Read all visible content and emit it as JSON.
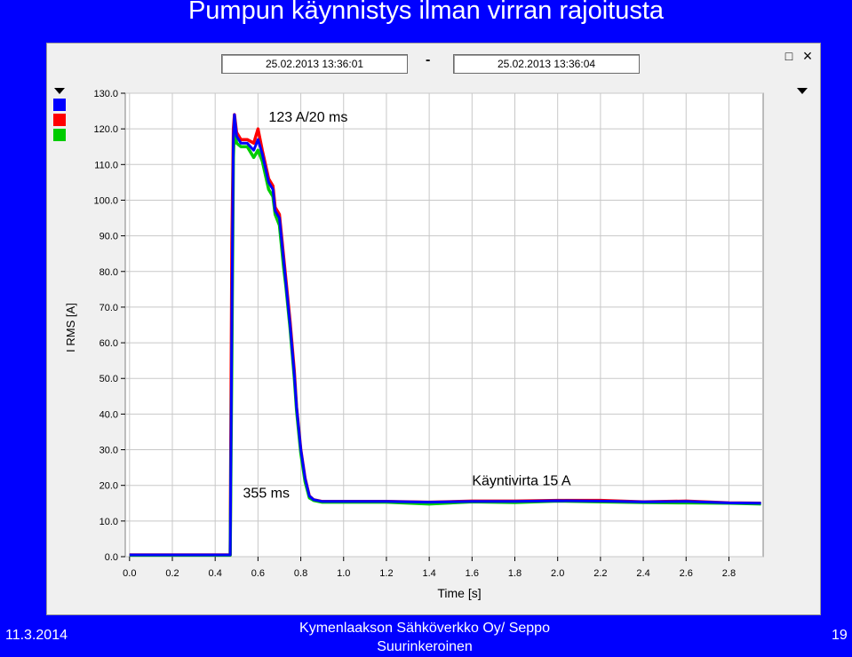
{
  "slide": {
    "title": "Pumpun käynnistys ilman virran rajoitusta",
    "footer_date": "11.3.2014",
    "footer_center": "Kymenlaakson Sähköverkko Oy/ Seppo Suurinkeroinen",
    "page_number": "19"
  },
  "viewer": {
    "time_start": "25.02.2013    13:36:01",
    "time_separator": "-",
    "time_end": "25.02.2013    13:36:04",
    "restore_icon": "restore-icon",
    "close_icon": "close-icon",
    "legend_colors": [
      "#0000ff",
      "#ff0000",
      "#00cc00"
    ]
  },
  "chart_data": {
    "type": "line",
    "title": "",
    "xlabel": "Time [s]",
    "ylabel": "I RMS [A]",
    "xlim": [
      -0.02,
      2.96
    ],
    "ylim": [
      0,
      130
    ],
    "x_ticks": [
      "0.0",
      "0.2",
      "0.4",
      "0.6",
      "0.8",
      "1.0",
      "1.2",
      "1.4",
      "1.6",
      "1.8",
      "2.0",
      "2.2",
      "2.4",
      "2.6",
      "2.8"
    ],
    "y_ticks": [
      "0.0",
      "10.0",
      "20.0",
      "30.0",
      "40.0",
      "50.0",
      "60.0",
      "70.0",
      "80.0",
      "90.0",
      "100.0",
      "110.0",
      "120.0",
      "130.0"
    ],
    "grid": true,
    "annotations": [
      {
        "text": "123 A/20 ms",
        "x": 0.65,
        "y": 122
      },
      {
        "text": "355 ms",
        "x": 0.53,
        "y": 16.5
      },
      {
        "text": "Käyntivirta 15 A",
        "x": 1.6,
        "y": 20
      }
    ],
    "series": [
      {
        "color": "#ff0000",
        "x": [
          0.0,
          0.47,
          0.478,
          0.485,
          0.49,
          0.5,
          0.52,
          0.55,
          0.58,
          0.6,
          0.62,
          0.65,
          0.67,
          0.68,
          0.7,
          0.72,
          0.73,
          0.75,
          0.77,
          0.78,
          0.8,
          0.82,
          0.84,
          0.86,
          0.9,
          1.0,
          1.2,
          1.4,
          1.6,
          1.8,
          2.0,
          2.2,
          2.4,
          2.6,
          2.8,
          2.95
        ],
        "y": [
          0.5,
          0.5,
          88,
          120,
          124,
          119,
          117,
          117,
          116,
          120,
          114,
          106,
          104,
          98,
          96,
          84,
          78,
          66,
          52,
          42,
          30,
          22,
          17,
          16,
          15.5,
          15.5,
          15.5,
          15.3,
          15.6,
          15.6,
          15.8,
          15.8,
          15.4,
          15.6,
          15.1,
          15
        ]
      },
      {
        "color": "#00cc00",
        "x": [
          0.0,
          0.47,
          0.478,
          0.485,
          0.49,
          0.5,
          0.52,
          0.55,
          0.58,
          0.6,
          0.62,
          0.65,
          0.67,
          0.68,
          0.7,
          0.72,
          0.73,
          0.75,
          0.77,
          0.78,
          0.8,
          0.82,
          0.84,
          0.86,
          0.9,
          1.0,
          1.2,
          1.4,
          1.6,
          1.8,
          2.0,
          2.2,
          2.4,
          2.6,
          2.8,
          2.95
        ],
        "y": [
          0.4,
          0.4,
          56,
          112,
          121,
          116,
          115,
          115,
          112,
          114,
          111,
          103,
          101,
          96,
          93,
          81,
          76,
          64,
          50,
          41,
          29,
          21,
          16.5,
          15.8,
          15.3,
          15.3,
          15.3,
          14.8,
          15.4,
          15.2,
          15.6,
          15.4,
          15.2,
          15.1,
          15,
          14.8
        ]
      },
      {
        "color": "#0000ff",
        "x": [
          0.0,
          0.47,
          0.478,
          0.485,
          0.49,
          0.5,
          0.52,
          0.55,
          0.58,
          0.6,
          0.62,
          0.65,
          0.67,
          0.68,
          0.7,
          0.72,
          0.73,
          0.75,
          0.77,
          0.78,
          0.8,
          0.82,
          0.84,
          0.86,
          0.9,
          1.0,
          1.2,
          1.4,
          1.6,
          1.8,
          2.0,
          2.2,
          2.4,
          2.6,
          2.8,
          2.95
        ],
        "y": [
          0.5,
          0.5,
          68,
          118,
          124,
          118,
          116,
          116,
          114,
          117,
          113,
          105,
          103,
          97,
          95,
          83,
          77,
          65,
          51,
          42,
          30,
          22,
          17,
          16,
          15.5,
          15.5,
          15.5,
          15.3,
          15.5,
          15.5,
          15.7,
          15.6,
          15.4,
          15.5,
          15.1,
          15
        ]
      }
    ]
  }
}
